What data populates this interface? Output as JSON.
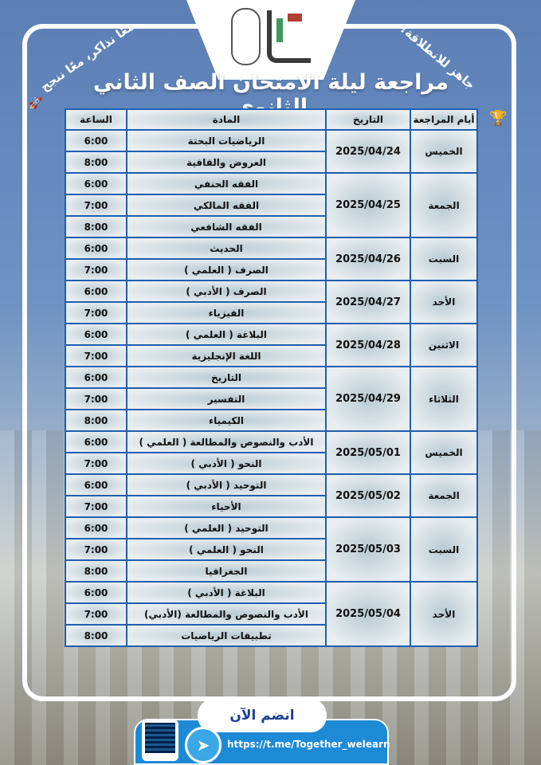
{
  "header": {
    "title": "مراجعة ليلة الامتحان الصف الثاني الثانوي",
    "slogan_left": "معًا نذاكر، معًا ننجح",
    "slogan_right": "جاهز للانطلاقة؟",
    "rocket_icon": "rocket-icon",
    "trophy_icon": "trophy-icon"
  },
  "table": {
    "headers": {
      "day": "أيام المراجعة",
      "date": "التاريخ",
      "subject": "المادة",
      "time": "الساعة"
    },
    "days": [
      {
        "day": "الخميس",
        "date": "2025/04/24",
        "items": [
          {
            "subject": "الرياضيات البحتة",
            "time": "6:00"
          },
          {
            "subject": "العروض والقافية",
            "time": "8:00"
          }
        ]
      },
      {
        "day": "الجمعة",
        "date": "2025/04/25",
        "items": [
          {
            "subject": "الفقه الحنفي",
            "time": "6:00"
          },
          {
            "subject": "الفقه المالكي",
            "time": "7:00"
          },
          {
            "subject": "الفقه الشافعي",
            "time": "8:00"
          }
        ]
      },
      {
        "day": "السبت",
        "date": "2025/04/26",
        "items": [
          {
            "subject": "الحديث",
            "time": "6:00"
          },
          {
            "subject": "الصرف ( العلمي )",
            "time": "7:00"
          }
        ]
      },
      {
        "day": "الأحد",
        "date": "2025/04/27",
        "items": [
          {
            "subject": "الصرف ( الأدبي )",
            "time": "6:00"
          },
          {
            "subject": "الفيزياء",
            "time": "7:00"
          }
        ]
      },
      {
        "day": "الاثنين",
        "date": "2025/04/28",
        "items": [
          {
            "subject": "البلاغة ( العلمي )",
            "time": "6:00"
          },
          {
            "subject": "اللغة الإنجليزية",
            "time": "7:00"
          }
        ]
      },
      {
        "day": "الثلاثاء",
        "date": "2025/04/29",
        "items": [
          {
            "subject": "التاريخ",
            "time": "6:00"
          },
          {
            "subject": "التفسير",
            "time": "7:00"
          },
          {
            "subject": "الكيمياء",
            "time": "8:00"
          }
        ]
      },
      {
        "day": "الخميس",
        "date": "2025/05/01",
        "items": [
          {
            "subject": "الأدب والنصوص والمطالعة ( العلمي )",
            "time": "6:00"
          },
          {
            "subject": "النحو ( الأدبي )",
            "time": "7:00"
          }
        ]
      },
      {
        "day": "الجمعة",
        "date": "2025/05/02",
        "items": [
          {
            "subject": "التوحيد ( الأدبي )",
            "time": "6:00"
          },
          {
            "subject": "الأحياء",
            "time": "7:00"
          }
        ]
      },
      {
        "day": "السبت",
        "date": "2025/05/03",
        "items": [
          {
            "subject": "التوحيد ( العلمي )",
            "time": "6:00"
          },
          {
            "subject": "النحو ( العلمي )",
            "time": "7:00"
          },
          {
            "subject": "الجغرافيا",
            "time": "8:00"
          }
        ]
      },
      {
        "day": "الأحد",
        "date": "2025/05/04",
        "items": [
          {
            "subject": "البلاغة ( الأدبي )",
            "time": "6:00"
          },
          {
            "subject": "الأدب والنصوص والمطالعة (الأدبي)",
            "time": "7:00"
          },
          {
            "subject": "تطبيقات الرياضيات",
            "time": "8:00"
          }
        ]
      }
    ]
  },
  "footer": {
    "join_label": "انضم الآن",
    "url": "https://t.me/Together_welearn",
    "telegram_icon": "telegram-icon",
    "qr_icon": "qr-code-icon"
  },
  "colors": {
    "table_border": "#1f5fb0",
    "title_color": "#ffffff",
    "join_text": "#1f3f8f",
    "footer_bar": "#1d8ad6"
  }
}
